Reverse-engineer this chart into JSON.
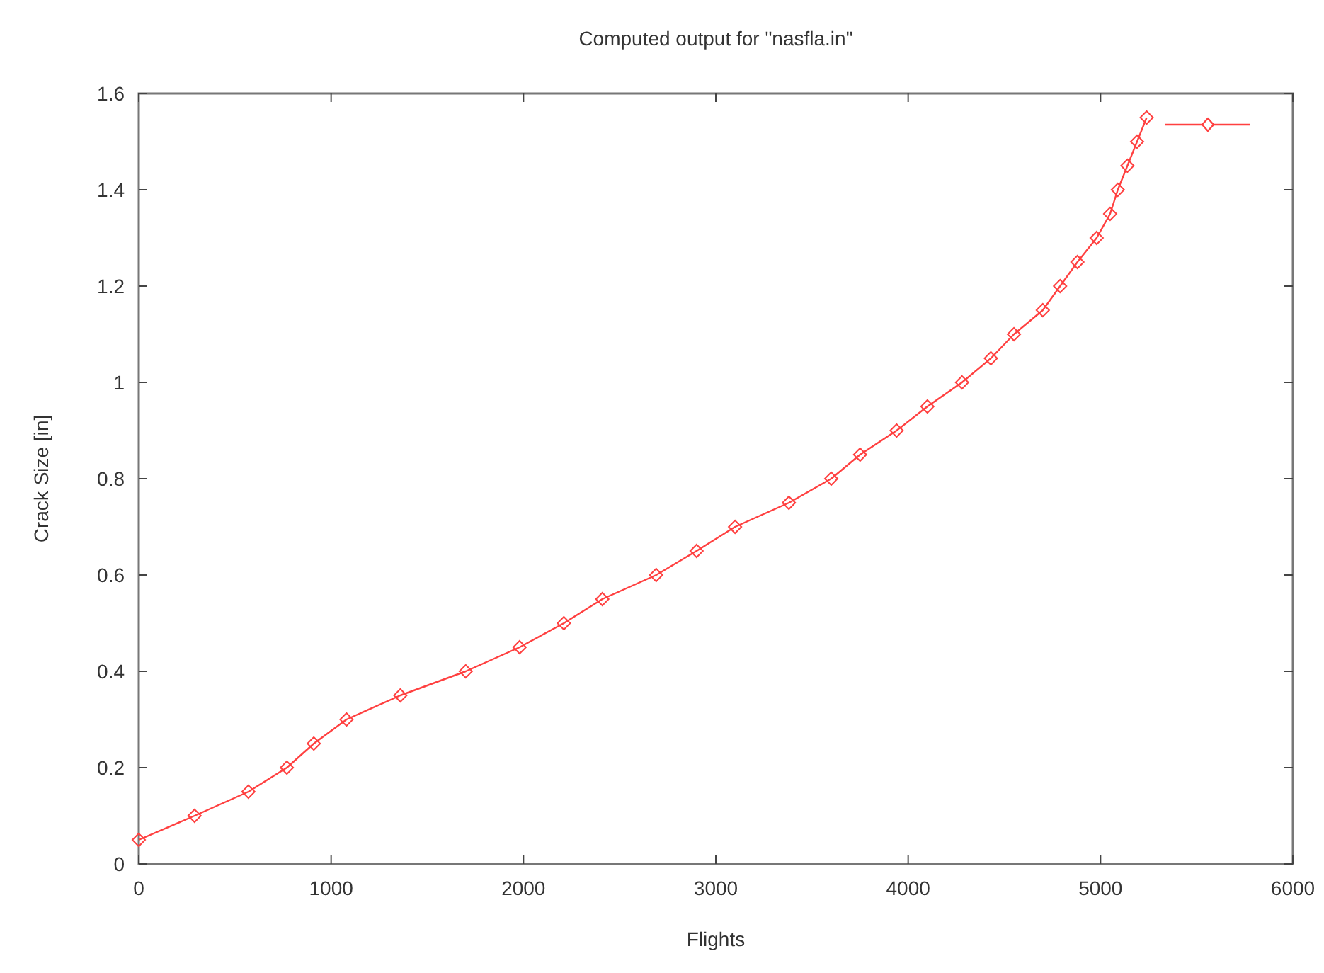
{
  "chart_data": {
    "type": "line",
    "title": "Computed output for \"nasfla.in\"",
    "xlabel": "Flights",
    "ylabel": "Crack Size [in]",
    "xlim": [
      0,
      6000
    ],
    "xticks": [
      0,
      1000,
      2000,
      3000,
      4000,
      5000,
      6000
    ],
    "ylim": [
      0,
      1.6
    ],
    "yticks": [
      0,
      0.2,
      0.4,
      0.6,
      0.8,
      1,
      1.2,
      1.4,
      1.6
    ],
    "grid": false,
    "marker": "diamond",
    "line_style": "solid",
    "series": [
      {
        "color": "#ff4040",
        "x": [
          0,
          290,
          570,
          770,
          910,
          1080,
          1360,
          1700,
          1980,
          2210,
          2410,
          2690,
          2900,
          3100,
          3380,
          3600,
          3750,
          3940,
          4100,
          4280,
          4430,
          4550,
          4700,
          4790,
          4880,
          4980,
          5050,
          5090,
          5140,
          5190,
          5240
        ],
        "values": [
          0.05,
          0.1,
          0.15,
          0.2,
          0.25,
          0.3,
          0.35,
          0.4,
          0.45,
          0.5,
          0.55,
          0.6,
          0.65,
          0.7,
          0.75,
          0.8,
          0.85,
          0.9,
          0.95,
          1.0,
          1.05,
          1.1,
          1.15,
          1.2,
          1.25,
          1.3,
          1.35,
          1.4,
          1.45,
          1.5,
          1.55
        ]
      }
    ]
  }
}
